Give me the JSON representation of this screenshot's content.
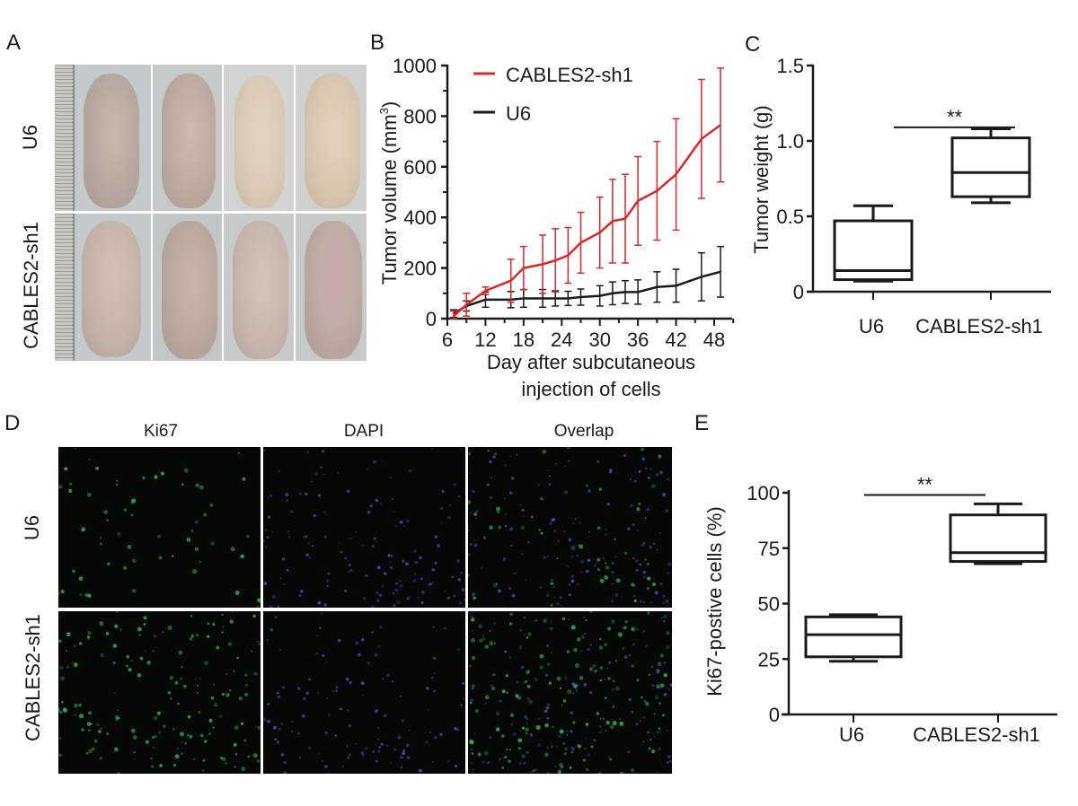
{
  "panels": {
    "A": {
      "letter": "A",
      "row_labels": [
        "U6",
        "CABLES2-sh1"
      ],
      "description": "Photographs of nude mice bearing subcutaneous tumors, 4 per group, ruler at left"
    },
    "B": {
      "letter": "B"
    },
    "C": {
      "letter": "C"
    },
    "D": {
      "letter": "D",
      "column_labels": [
        "Ki67",
        "DAPI",
        "Overlap"
      ],
      "row_labels": [
        "U6",
        "CABLES2-sh1"
      ]
    },
    "E": {
      "letter": "E"
    }
  },
  "colors": {
    "red_series": "#d42a2a",
    "black_series": "#1a1a1a",
    "ki67_green": "#2fbf4a",
    "dapi_blue": "#4a4ad8"
  },
  "chart_data": [
    {
      "panel": "B",
      "type": "line",
      "title": "",
      "xlabel": "Day after subcutaneous injection of cells",
      "xlabel_lines": [
        "Day after subcutaneous",
        "injection of cells"
      ],
      "ylabel": "Tumor volume (mm3)",
      "ylabel_main": "Tumor volume (mm",
      "ylabel_sup": "3",
      "ylabel_end": ")",
      "xlim": [
        6,
        51
      ],
      "ylim": [
        0,
        1000
      ],
      "xticks": [
        "6",
        "12",
        "18",
        "24",
        "30",
        "36",
        "42",
        "48"
      ],
      "yticks": [
        "0",
        "200",
        "400",
        "600",
        "800",
        "1000"
      ],
      "legend": [
        "CABLES2-sh1",
        "U6"
      ],
      "legend_position": "top-left inside",
      "grid": false,
      "x": [
        7,
        9,
        12,
        16,
        18,
        21,
        23,
        25,
        27,
        30,
        32,
        34,
        36,
        39,
        42,
        46,
        49
      ],
      "series": [
        {
          "name": "CABLES2-sh1",
          "color": "#d42a2a",
          "values": [
            10,
            55,
            110,
            150,
            200,
            215,
            230,
            250,
            300,
            340,
            385,
            395,
            465,
            505,
            570,
            710,
            765
          ],
          "error": [
            20,
            45,
            15,
            85,
            85,
            115,
            125,
            110,
            120,
            140,
            165,
            175,
            175,
            195,
            220,
            235,
            225
          ]
        },
        {
          "name": "U6",
          "color": "#1a1a1a",
          "values": [
            20,
            50,
            75,
            75,
            80,
            80,
            80,
            80,
            85,
            90,
            100,
            105,
            105,
            125,
            130,
            165,
            185
          ],
          "error": [
            15,
            20,
            30,
            32,
            35,
            35,
            30,
            28,
            32,
            40,
            45,
            45,
            48,
            60,
            65,
            95,
            100
          ]
        }
      ]
    },
    {
      "panel": "C",
      "type": "box",
      "title": "",
      "xlabel": "",
      "ylabel": "Tumor weight (g)",
      "ylim": [
        0,
        1.5
      ],
      "yticks": [
        "0",
        "0.5",
        "1.0",
        "1.5"
      ],
      "categories": [
        "U6",
        "CABLES2-sh1"
      ],
      "series": [
        {
          "name": "U6",
          "min": 0.07,
          "q1": 0.08,
          "median": 0.14,
          "q3": 0.47,
          "max": 0.57
        },
        {
          "name": "CABLES2-sh1",
          "min": 0.59,
          "q1": 0.63,
          "median": 0.79,
          "q3": 1.02,
          "max": 1.08
        }
      ],
      "annotation": {
        "text": "**",
        "bar_y": 1.09
      }
    },
    {
      "panel": "E",
      "type": "box",
      "title": "",
      "xlabel": "",
      "ylabel": "Ki67-postive cells (%)",
      "ylim": [
        0,
        100
      ],
      "yticks": [
        "0",
        "25",
        "50",
        "75",
        "100"
      ],
      "categories": [
        "U6",
        "CABLES2-sh1"
      ],
      "series": [
        {
          "name": "U6",
          "min": 24,
          "q1": 26,
          "median": 36,
          "q3": 44,
          "max": 45
        },
        {
          "name": "CABLES2-sh1",
          "min": 68,
          "q1": 69,
          "median": 73,
          "q3": 90,
          "max": 95
        }
      ],
      "annotation": {
        "text": "**",
        "bar_y": 99
      }
    }
  ]
}
